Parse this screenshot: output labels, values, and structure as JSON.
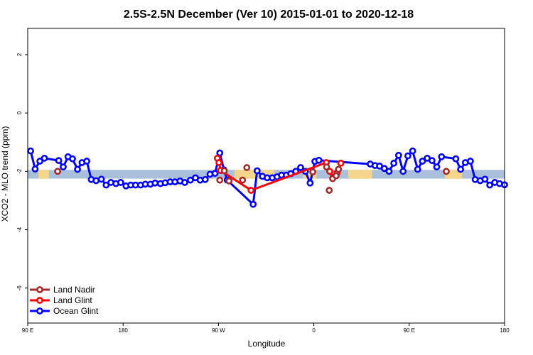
{
  "chart_data": {
    "type": "line",
    "title": "2.5S-2.5N December (Ver 10)   2015-01-01 to 2020-12-18",
    "xlabel": "Longitude",
    "ylabel": "XCO2 - MLO trend (ppm)",
    "xlim": [
      90,
      270
    ],
    "ylim": [
      -7.2,
      2.9
    ],
    "x_ticks": [
      {
        "value": 90,
        "label": "90 E"
      },
      {
        "value": 126,
        "label": "180"
      },
      {
        "value": 162,
        "label": "90 W"
      },
      {
        "value": 198,
        "label": "0"
      },
      {
        "value": 234,
        "label": "90 E"
      },
      {
        "value": 270,
        "label": "180"
      }
    ],
    "y_ticks": [
      {
        "value": -6,
        "label": "-6"
      },
      {
        "value": -4,
        "label": "-4"
      },
      {
        "value": -2,
        "label": "-2"
      },
      {
        "value": 0,
        "label": "0"
      },
      {
        "value": 2,
        "label": "2"
      }
    ],
    "band": {
      "ymin": -2.25,
      "ymax": -1.95,
      "color": "#a9bfdc"
    },
    "land_segments": [
      {
        "x0": 94.0,
        "x1": 98.0
      },
      {
        "x0": 168.0,
        "x1": 183.0
      },
      {
        "x0": 194.0,
        "x1": 199.0
      },
      {
        "x0": 211.0,
        "x1": 220.0
      },
      {
        "x0": 247.5,
        "x1": 254.0
      }
    ],
    "land_color": "#f5d58a",
    "series": [
      {
        "name": "Ocean Glint",
        "color": "#0000ff",
        "connected": true,
        "x": [
          91.1,
          92.8,
          94.6,
          96.3,
          101.7,
          103.4,
          105.2,
          106.9,
          108.8,
          110.5,
          112.3,
          114.0,
          115.8,
          117.8,
          119.6,
          121.4,
          123.3,
          125.1,
          127.1,
          128.9,
          130.7,
          132.6,
          134.4,
          136.3,
          138.1,
          140.1,
          141.9,
          143.8,
          145.6,
          147.5,
          149.3,
          151.4,
          153.3,
          155.1,
          157.0,
          158.8,
          160.7,
          162.5,
          164.1,
          165.3,
          175.1,
          176.6,
          178.6,
          180.4,
          182.3,
          184.1,
          185.8,
          187.6,
          189.3,
          191.2,
          193.0,
          194.8,
          196.6,
          198.4,
          199.9,
          219.3,
          221.1,
          222.8,
          224.6,
          226.4,
          228.2,
          230.0,
          231.7,
          233.5,
          235.3,
          237.2,
          239.0,
          240.8,
          242.6,
          244.4,
          246.2,
          251.6,
          253.4,
          255.2,
          257.1,
          258.9,
          260.8,
          262.6,
          264.4,
          266.3,
          268.1,
          270.0
        ],
        "y": [
          -1.3,
          -1.92,
          -1.65,
          -1.55,
          -1.63,
          -1.85,
          -1.5,
          -1.57,
          -1.93,
          -1.7,
          -1.65,
          -2.28,
          -2.32,
          -2.27,
          -2.47,
          -2.38,
          -2.42,
          -2.38,
          -2.5,
          -2.47,
          -2.47,
          -2.47,
          -2.44,
          -2.44,
          -2.4,
          -2.42,
          -2.39,
          -2.36,
          -2.36,
          -2.33,
          -2.38,
          -2.3,
          -2.22,
          -2.3,
          -2.28,
          -2.1,
          -2.07,
          -1.37,
          -1.95,
          -2.3,
          -3.13,
          -1.98,
          -2.17,
          -2.22,
          -2.22,
          -2.19,
          -2.13,
          -2.13,
          -2.08,
          -2.0,
          -1.87,
          -2.0,
          -2.4,
          -1.66,
          -1.62,
          -1.75,
          -1.8,
          -1.82,
          -1.9,
          -2.0,
          -1.72,
          -1.45,
          -2.0,
          -1.47,
          -1.3,
          -1.93,
          -1.65,
          -1.55,
          -1.63,
          -1.85,
          -1.5,
          -1.57,
          -1.93,
          -1.7,
          -1.65,
          -2.28,
          -2.32,
          -2.27,
          -2.47,
          -2.38,
          -2.42,
          -2.46
        ]
      },
      {
        "name": "Land Glint",
        "color": "#ff0000",
        "connected": true,
        "x": [
          161.6,
          162.2,
          162.8,
          174.3,
          202.7,
          204.0,
          205.3,
          206.8,
          208.2
        ],
        "y": [
          -1.55,
          -1.7,
          -1.97,
          -2.65,
          -1.7,
          -2.0,
          -2.2,
          -2.05,
          -1.72
        ]
      },
      {
        "name": "Land Nadir",
        "color": "#a52a2a",
        "connected": false,
        "x": [
          101.3,
          162.5,
          164.2,
          166.0,
          171.1,
          172.7,
          197.6,
          202.8,
          203.8,
          205.1,
          206.4,
          207.3,
          248.0
        ],
        "y": [
          -2.0,
          -2.3,
          -1.98,
          -2.33,
          -2.3,
          -1.87,
          -2.02,
          -1.85,
          -2.65,
          -2.25,
          -2.15,
          -1.93,
          -2.0
        ]
      }
    ],
    "legend": {
      "position": "bottom-left",
      "entries": [
        {
          "label": "Land Nadir",
          "color": "#a52a2a"
        },
        {
          "label": "Land Glint",
          "color": "#ff0000"
        },
        {
          "label": "Ocean Glint",
          "color": "#0000ff"
        }
      ]
    }
  }
}
